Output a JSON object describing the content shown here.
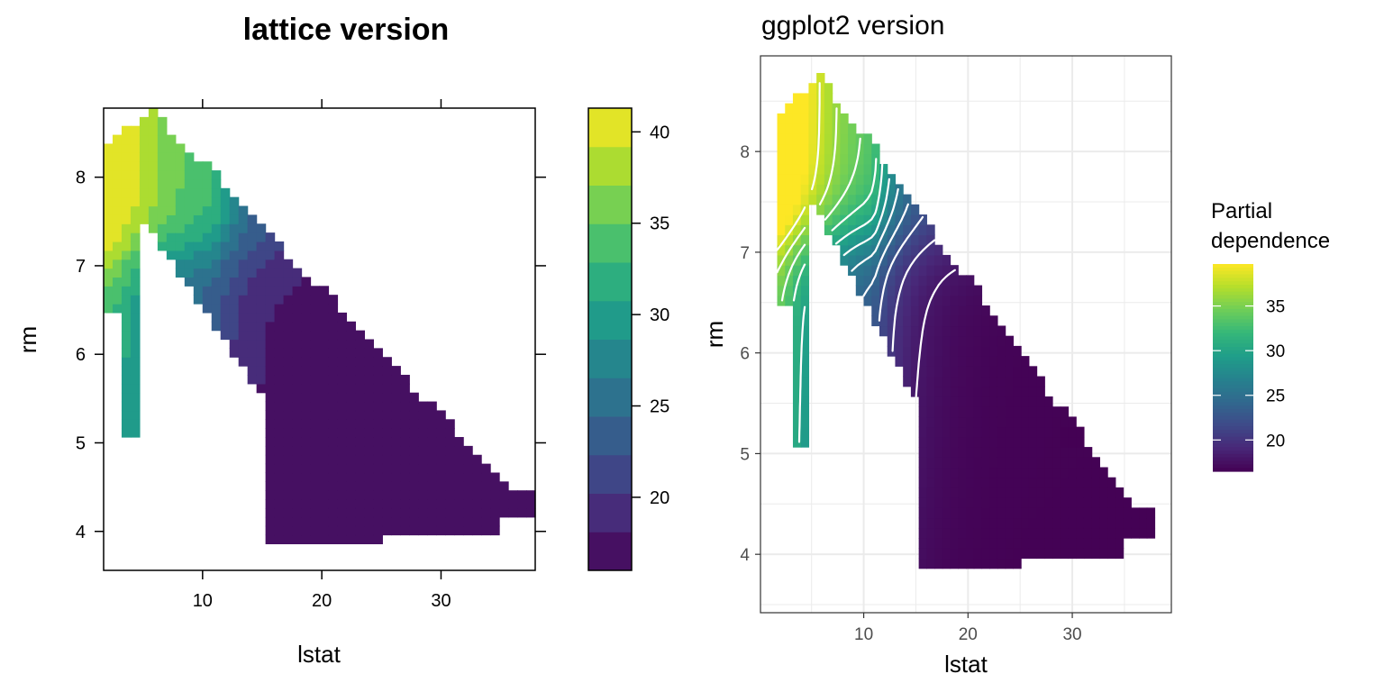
{
  "chart_data": [
    {
      "type": "heatmap",
      "title": "lattice version",
      "xlabel": "lstat",
      "ylabel": "rm",
      "xlim": [
        1.7,
        37.9
      ],
      "ylim": [
        3.56,
        8.78
      ],
      "xticks": [
        10,
        20,
        30
      ],
      "yticks": [
        4,
        5,
        6,
        7,
        8
      ],
      "colorbar": {
        "ticks": [
          20,
          25,
          30,
          35,
          40
        ],
        "range": [
          16,
          41.3
        ]
      },
      "value_levels": {
        "cell_min": 16.5,
        "cell_max": 40.5
      },
      "grid": false,
      "legend": "right"
    },
    {
      "type": "heatmap",
      "title": "ggplot2 version",
      "xlabel": "lstat",
      "ylabel": "rm",
      "xlim": [
        0.1,
        39.5
      ],
      "ylim": [
        3.42,
        8.95
      ],
      "xticks": [
        10,
        20,
        30
      ],
      "yticks": [
        4,
        5,
        6,
        7,
        8
      ],
      "contours": true,
      "grid": true,
      "legend": {
        "title": [
          "Partial",
          "dependence"
        ],
        "ticks": [
          20,
          25,
          30,
          35
        ],
        "range": [
          16.5,
          39.7
        ],
        "position": "right"
      }
    }
  ],
  "colors": {
    "viridis": [
      "#440154",
      "#482878",
      "#3e4a89",
      "#31688e",
      "#26828e",
      "#1f9e89",
      "#35b779",
      "#6ece58",
      "#b5de2b",
      "#fde725"
    ],
    "contour": "#ffffff",
    "panel_border": "#333333",
    "gridline": "#ebebeb"
  }
}
